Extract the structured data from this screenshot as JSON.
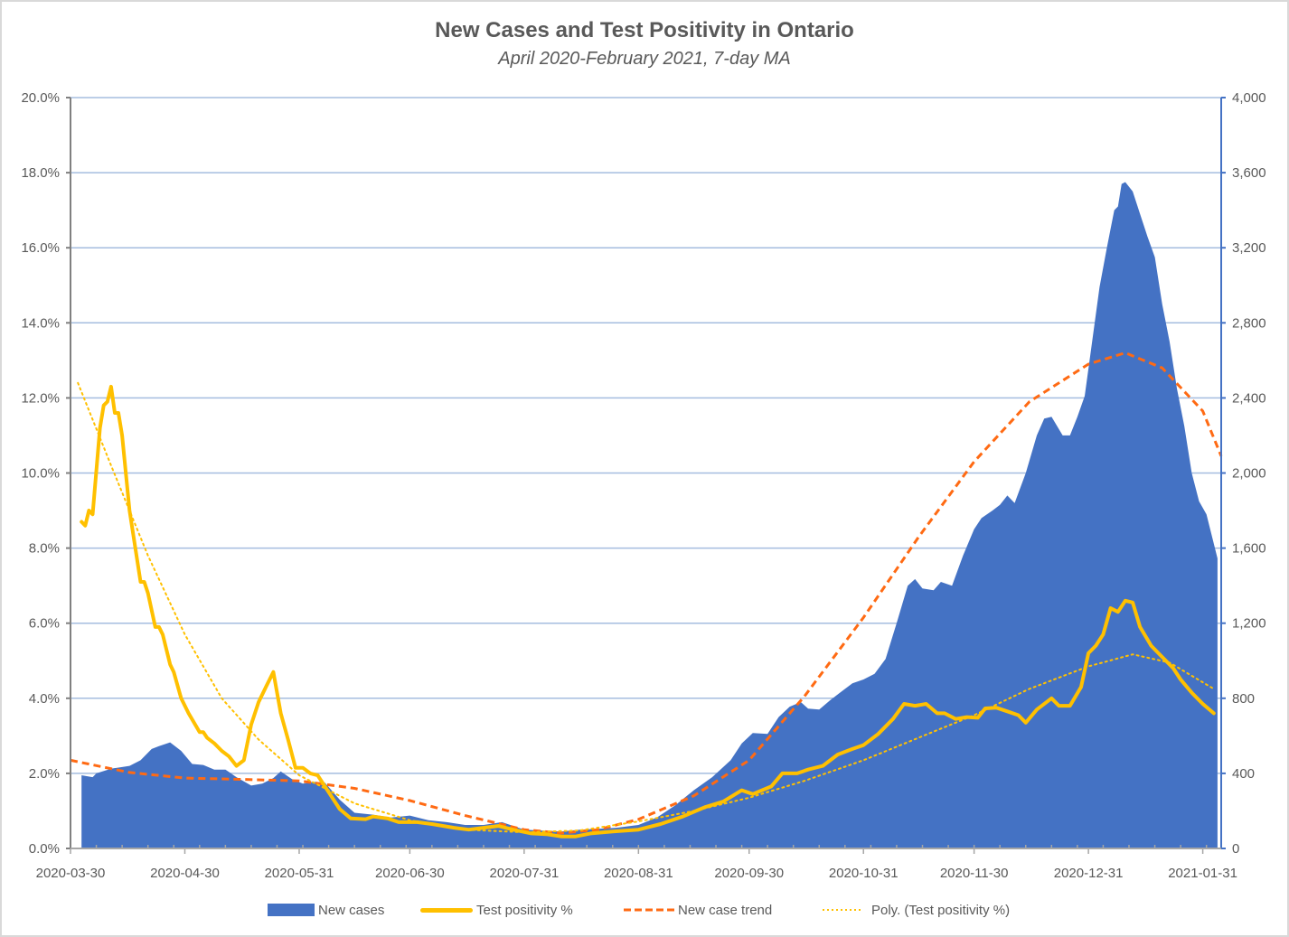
{
  "chart_data": {
    "type": "area",
    "title": "New Cases and Test Positivity in Ontario",
    "subtitle": "April 2020-February 2021, 7-day MA",
    "xlabel": "",
    "ylabel_left": "",
    "ylabel_right": "",
    "x_axis": {
      "start_date": "2020-03-30",
      "end_date": "2021-02-05",
      "tick_labels": [
        "2020-03-30",
        "2020-04-30",
        "2020-05-31",
        "2020-06-30",
        "2020-07-31",
        "2020-08-31",
        "2020-09-30",
        "2020-10-31",
        "2020-11-30",
        "2020-12-31",
        "2021-01-31"
      ]
    },
    "y_left": {
      "ylim": [
        0,
        20
      ],
      "tick_labels": [
        "0.0%",
        "2.0%",
        "4.0%",
        "6.0%",
        "8.0%",
        "10.0%",
        "12.0%",
        "14.0%",
        "16.0%",
        "18.0%",
        "20.0%"
      ]
    },
    "y_right": {
      "ylim": [
        0,
        4000
      ],
      "tick_labels": [
        "0",
        "400",
        "800",
        "1,200",
        "1,600",
        "2,000",
        "2,400",
        "2,800",
        "3,200",
        "3,600",
        "4,000"
      ]
    },
    "grid": true,
    "legend_position": "bottom",
    "colors": {
      "new_cases": "#4472c4",
      "test_positivity": "#ffc000",
      "new_case_trend": "#ff6a13",
      "poly_test_positivity": "#ffc000",
      "grid": "#a5bddf",
      "left_axis": "#808080",
      "right_axis": "#4472c4",
      "text": "#595959"
    },
    "series": [
      {
        "name": "New cases",
        "type": "area",
        "axis": "right",
        "points": [
          [
            "2020-04-02",
            0
          ],
          [
            "2020-04-02",
            390
          ],
          [
            "2020-04-05",
            380
          ],
          [
            "2020-04-06",
            400
          ],
          [
            "2020-04-10",
            425
          ],
          [
            "2020-04-15",
            440
          ],
          [
            "2020-04-18",
            470
          ],
          [
            "2020-04-21",
            530
          ],
          [
            "2020-04-23",
            545
          ],
          [
            "2020-04-26",
            565
          ],
          [
            "2020-04-29",
            520
          ],
          [
            "2020-05-02",
            450
          ],
          [
            "2020-05-05",
            445
          ],
          [
            "2020-05-08",
            420
          ],
          [
            "2020-05-11",
            420
          ],
          [
            "2020-05-14",
            380
          ],
          [
            "2020-05-18",
            335
          ],
          [
            "2020-05-21",
            345
          ],
          [
            "2020-05-24",
            375
          ],
          [
            "2020-05-26",
            410
          ],
          [
            "2020-05-29",
            370
          ],
          [
            "2020-06-01",
            345
          ],
          [
            "2020-06-04",
            355
          ],
          [
            "2020-06-07",
            350
          ],
          [
            "2020-06-11",
            260
          ],
          [
            "2020-06-15",
            190
          ],
          [
            "2020-06-20",
            180
          ],
          [
            "2020-06-25",
            165
          ],
          [
            "2020-06-30",
            175
          ],
          [
            "2020-07-05",
            150
          ],
          [
            "2020-07-10",
            140
          ],
          [
            "2020-07-15",
            125
          ],
          [
            "2020-07-20",
            125
          ],
          [
            "2020-07-25",
            140
          ],
          [
            "2020-07-31",
            100
          ],
          [
            "2020-08-05",
            95
          ],
          [
            "2020-08-10",
            90
          ],
          [
            "2020-08-15",
            100
          ],
          [
            "2020-08-20",
            105
          ],
          [
            "2020-08-25",
            110
          ],
          [
            "2020-08-31",
            125
          ],
          [
            "2020-09-05",
            165
          ],
          [
            "2020-09-10",
            230
          ],
          [
            "2020-09-15",
            310
          ],
          [
            "2020-09-20",
            380
          ],
          [
            "2020-09-25",
            470
          ],
          [
            "2020-09-28",
            560
          ],
          [
            "2020-10-01",
            615
          ],
          [
            "2020-10-05",
            610
          ],
          [
            "2020-10-08",
            700
          ],
          [
            "2020-10-11",
            755
          ],
          [
            "2020-10-14",
            780
          ],
          [
            "2020-10-16",
            745
          ],
          [
            "2020-10-19",
            740
          ],
          [
            "2020-10-22",
            790
          ],
          [
            "2020-10-25",
            835
          ],
          [
            "2020-10-28",
            880
          ],
          [
            "2020-10-31",
            900
          ],
          [
            "2020-11-03",
            930
          ],
          [
            "2020-11-06",
            1010
          ],
          [
            "2020-11-09",
            1200
          ],
          [
            "2020-11-12",
            1400
          ],
          [
            "2020-11-14",
            1435
          ],
          [
            "2020-11-16",
            1385
          ],
          [
            "2020-11-19",
            1375
          ],
          [
            "2020-11-21",
            1420
          ],
          [
            "2020-11-24",
            1400
          ],
          [
            "2020-11-27",
            1560
          ],
          [
            "2020-11-30",
            1700
          ],
          [
            "2020-12-02",
            1760
          ],
          [
            "2020-12-05",
            1800
          ],
          [
            "2020-12-07",
            1830
          ],
          [
            "2020-12-09",
            1880
          ],
          [
            "2020-12-11",
            1840
          ],
          [
            "2020-12-14",
            2000
          ],
          [
            "2020-12-17",
            2200
          ],
          [
            "2020-12-19",
            2290
          ],
          [
            "2020-12-21",
            2300
          ],
          [
            "2020-12-24",
            2200
          ],
          [
            "2020-12-26",
            2200
          ],
          [
            "2020-12-28",
            2300
          ],
          [
            "2020-12-30",
            2410
          ],
          [
            "2021-01-01",
            2700
          ],
          [
            "2021-01-03",
            2990
          ],
          [
            "2021-01-05",
            3200
          ],
          [
            "2021-01-07",
            3400
          ],
          [
            "2021-01-08",
            3420
          ],
          [
            "2021-01-09",
            3540
          ],
          [
            "2021-01-10",
            3550
          ],
          [
            "2021-01-12",
            3500
          ],
          [
            "2021-01-14",
            3380
          ],
          [
            "2021-01-16",
            3260
          ],
          [
            "2021-01-18",
            3150
          ],
          [
            "2021-01-20",
            2900
          ],
          [
            "2021-01-22",
            2700
          ],
          [
            "2021-01-24",
            2450
          ],
          [
            "2021-01-26",
            2250
          ],
          [
            "2021-01-28",
            2000
          ],
          [
            "2021-01-30",
            1850
          ],
          [
            "2021-02-01",
            1780
          ],
          [
            "2021-02-04",
            1545
          ],
          [
            "2021-02-04",
            0
          ]
        ]
      },
      {
        "name": "Test positivity %",
        "type": "line",
        "axis": "left",
        "points": [
          [
            "2020-04-02",
            8.7
          ],
          [
            "2020-04-03",
            8.6
          ],
          [
            "2020-04-04",
            9.0
          ],
          [
            "2020-04-05",
            8.9
          ],
          [
            "2020-04-07",
            11.2
          ],
          [
            "2020-04-08",
            11.8
          ],
          [
            "2020-04-09",
            11.9
          ],
          [
            "2020-04-10",
            12.3
          ],
          [
            "2020-04-11",
            11.6
          ],
          [
            "2020-04-12",
            11.6
          ],
          [
            "2020-04-13",
            11.0
          ],
          [
            "2020-04-15",
            9.0
          ],
          [
            "2020-04-18",
            7.1
          ],
          [
            "2020-04-19",
            7.1
          ],
          [
            "2020-04-20",
            6.8
          ],
          [
            "2020-04-22",
            5.9
          ],
          [
            "2020-04-23",
            5.9
          ],
          [
            "2020-04-24",
            5.7
          ],
          [
            "2020-04-26",
            4.9
          ],
          [
            "2020-04-27",
            4.7
          ],
          [
            "2020-04-29",
            4.0
          ],
          [
            "2020-05-01",
            3.6
          ],
          [
            "2020-05-04",
            3.1
          ],
          [
            "2020-05-05",
            3.1
          ],
          [
            "2020-05-06",
            2.95
          ],
          [
            "2020-05-08",
            2.8
          ],
          [
            "2020-05-10",
            2.6
          ],
          [
            "2020-05-12",
            2.45
          ],
          [
            "2020-05-14",
            2.2
          ],
          [
            "2020-05-16",
            2.35
          ],
          [
            "2020-05-18",
            3.3
          ],
          [
            "2020-05-20",
            3.9
          ],
          [
            "2020-05-22",
            4.3
          ],
          [
            "2020-05-24",
            4.7
          ],
          [
            "2020-05-26",
            3.6
          ],
          [
            "2020-05-28",
            2.9
          ],
          [
            "2020-05-30",
            2.15
          ],
          [
            "2020-06-01",
            2.15
          ],
          [
            "2020-06-03",
            2.0
          ],
          [
            "2020-06-05",
            1.95
          ],
          [
            "2020-06-08",
            1.5
          ],
          [
            "2020-06-11",
            1.05
          ],
          [
            "2020-06-14",
            0.8
          ],
          [
            "2020-06-18",
            0.78
          ],
          [
            "2020-06-20",
            0.85
          ],
          [
            "2020-06-24",
            0.8
          ],
          [
            "2020-06-27",
            0.7
          ],
          [
            "2020-07-02",
            0.7
          ],
          [
            "2020-07-06",
            0.65
          ],
          [
            "2020-07-12",
            0.55
          ],
          [
            "2020-07-16",
            0.5
          ],
          [
            "2020-07-20",
            0.55
          ],
          [
            "2020-07-24",
            0.6
          ],
          [
            "2020-07-28",
            0.5
          ],
          [
            "2020-08-02",
            0.4
          ],
          [
            "2020-08-06",
            0.38
          ],
          [
            "2020-08-10",
            0.32
          ],
          [
            "2020-08-14",
            0.32
          ],
          [
            "2020-08-18",
            0.4
          ],
          [
            "2020-08-24",
            0.45
          ],
          [
            "2020-08-31",
            0.5
          ],
          [
            "2020-09-06",
            0.65
          ],
          [
            "2020-09-12",
            0.85
          ],
          [
            "2020-09-18",
            1.1
          ],
          [
            "2020-09-23",
            1.25
          ],
          [
            "2020-09-28",
            1.55
          ],
          [
            "2020-10-01",
            1.45
          ],
          [
            "2020-10-06",
            1.65
          ],
          [
            "2020-10-09",
            2.0
          ],
          [
            "2020-10-13",
            2.0
          ],
          [
            "2020-10-16",
            2.1
          ],
          [
            "2020-10-20",
            2.2
          ],
          [
            "2020-10-24",
            2.5
          ],
          [
            "2020-10-28",
            2.65
          ],
          [
            "2020-10-31",
            2.75
          ],
          [
            "2020-11-04",
            3.05
          ],
          [
            "2020-11-08",
            3.45
          ],
          [
            "2020-11-11",
            3.85
          ],
          [
            "2020-11-14",
            3.8
          ],
          [
            "2020-11-17",
            3.85
          ],
          [
            "2020-11-20",
            3.6
          ],
          [
            "2020-11-22",
            3.6
          ],
          [
            "2020-11-25",
            3.45
          ],
          [
            "2020-11-28",
            3.5
          ],
          [
            "2020-12-01",
            3.48
          ],
          [
            "2020-12-03",
            3.73
          ],
          [
            "2020-12-06",
            3.75
          ],
          [
            "2020-12-09",
            3.65
          ],
          [
            "2020-12-12",
            3.55
          ],
          [
            "2020-12-14",
            3.35
          ],
          [
            "2020-12-17",
            3.7
          ],
          [
            "2020-12-21",
            4.0
          ],
          [
            "2020-12-23",
            3.8
          ],
          [
            "2020-12-26",
            3.8
          ],
          [
            "2020-12-29",
            4.3
          ],
          [
            "2020-12-31",
            5.2
          ],
          [
            "2021-01-02",
            5.4
          ],
          [
            "2021-01-04",
            5.7
          ],
          [
            "2021-01-06",
            6.4
          ],
          [
            "2021-01-08",
            6.3
          ],
          [
            "2021-01-10",
            6.6
          ],
          [
            "2021-01-12",
            6.55
          ],
          [
            "2021-01-14",
            5.9
          ],
          [
            "2021-01-17",
            5.4
          ],
          [
            "2021-01-20",
            5.1
          ],
          [
            "2021-01-23",
            4.8
          ],
          [
            "2021-01-25",
            4.5
          ],
          [
            "2021-01-28",
            4.15
          ],
          [
            "2021-01-31",
            3.85
          ],
          [
            "2021-02-03",
            3.6
          ]
        ]
      },
      {
        "name": "New case trend",
        "type": "line",
        "style": "dashed",
        "axis": "right",
        "points": [
          [
            "2020-03-30",
            470
          ],
          [
            "2020-04-15",
            405
          ],
          [
            "2020-04-30",
            375
          ],
          [
            "2020-05-15",
            368
          ],
          [
            "2020-05-31",
            360
          ],
          [
            "2020-06-15",
            320
          ],
          [
            "2020-06-30",
            255
          ],
          [
            "2020-07-15",
            175
          ],
          [
            "2020-07-31",
            100
          ],
          [
            "2020-08-10",
            82
          ],
          [
            "2020-08-20",
            100
          ],
          [
            "2020-08-31",
            155
          ],
          [
            "2020-09-15",
            280
          ],
          [
            "2020-09-30",
            470
          ],
          [
            "2020-10-15",
            810
          ],
          [
            "2020-10-31",
            1230
          ],
          [
            "2020-11-15",
            1660
          ],
          [
            "2020-11-30",
            2060
          ],
          [
            "2020-12-15",
            2380
          ],
          [
            "2020-12-31",
            2580
          ],
          [
            "2021-01-10",
            2640
          ],
          [
            "2021-01-20",
            2560
          ],
          [
            "2021-01-31",
            2330
          ],
          [
            "2021-02-05",
            2090
          ]
        ]
      },
      {
        "name": "Poly. (Test positivity %)",
        "type": "line",
        "style": "dotted",
        "axis": "left",
        "points": [
          [
            "2020-04-01",
            12.4
          ],
          [
            "2020-04-10",
            10.2
          ],
          [
            "2020-04-20",
            7.8
          ],
          [
            "2020-04-30",
            5.7
          ],
          [
            "2020-05-10",
            4.0
          ],
          [
            "2020-05-20",
            2.9
          ],
          [
            "2020-05-31",
            1.95
          ],
          [
            "2020-06-15",
            1.2
          ],
          [
            "2020-06-30",
            0.75
          ],
          [
            "2020-07-15",
            0.5
          ],
          [
            "2020-07-31",
            0.43
          ],
          [
            "2020-08-15",
            0.48
          ],
          [
            "2020-08-31",
            0.72
          ],
          [
            "2020-09-15",
            1.0
          ],
          [
            "2020-09-30",
            1.35
          ],
          [
            "2020-10-15",
            1.8
          ],
          [
            "2020-10-31",
            2.35
          ],
          [
            "2020-11-15",
            2.95
          ],
          [
            "2020-11-30",
            3.55
          ],
          [
            "2020-12-15",
            4.25
          ],
          [
            "2020-12-31",
            4.85
          ],
          [
            "2021-01-12",
            5.17
          ],
          [
            "2021-01-22",
            4.95
          ],
          [
            "2021-02-03",
            4.25
          ]
        ]
      }
    ]
  },
  "legend": {
    "items": [
      {
        "label": "New cases"
      },
      {
        "label": "Test positivity %"
      },
      {
        "label": "New case trend"
      },
      {
        "label": "Poly. (Test positivity %)"
      }
    ]
  }
}
